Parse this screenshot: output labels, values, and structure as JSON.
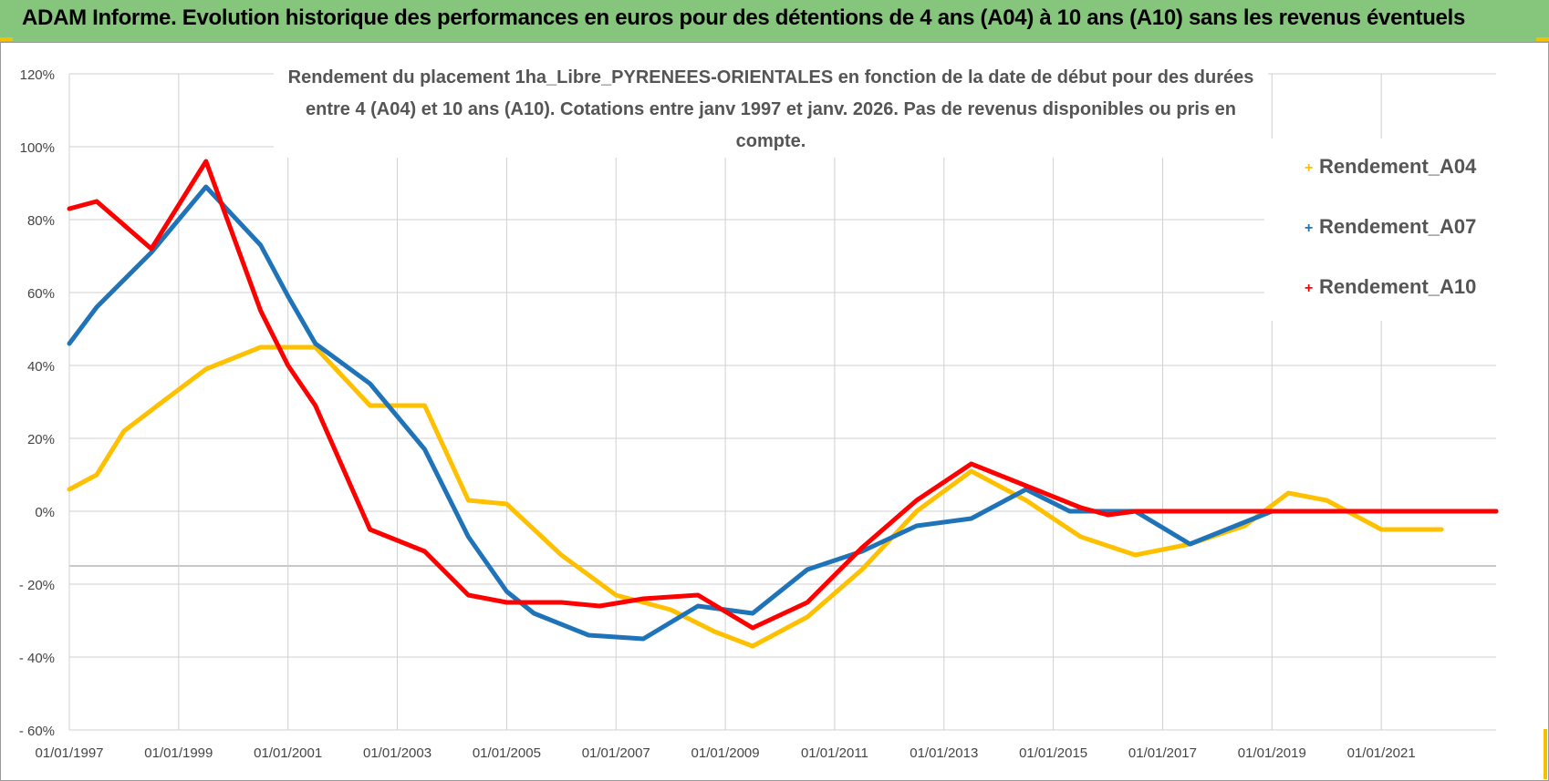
{
  "header": {
    "title": "ADAM Informe. Evolution historique des performances en euros pour des détentions de 4 ans (A04) à 10 ans (A10) sans les revenus éventuels"
  },
  "chart_data": {
    "type": "line",
    "title_lines": [
      "Rendement du placement 1ha_Libre_PYRENEES-ORIENTALES en fonction de la date de début pour des durées",
      "entre 4 (A04) et 10 ans (A10).  Cotations entre janv 1997 et janv. 2026. Pas de revenus disponibles ou pris en compte."
    ],
    "xlabel": "",
    "ylabel": "",
    "x_tick_labels": [
      "01/01/1997",
      "01/01/1999",
      "01/01/2001",
      "01/01/2003",
      "01/01/2005",
      "01/01/2007",
      "01/01/2009",
      "01/01/2011",
      "01/01/2013",
      "01/01/2015",
      "01/01/2017",
      "01/01/2019",
      "01/01/2021"
    ],
    "y_tick_labels": [
      "120%",
      "100%",
      "80%",
      "60%",
      "40%",
      "20%",
      "0%",
      "- 20%",
      "- 40%",
      "- 60%"
    ],
    "xlim": [
      1997,
      2023.1
    ],
    "ylim": [
      -60,
      120
    ],
    "grid": true,
    "legend_position": "top-right",
    "series": [
      {
        "name": "Rendement_A04",
        "color": "#ffc000",
        "points": [
          [
            1997,
            6
          ],
          [
            1997.5,
            10
          ],
          [
            1998,
            22
          ],
          [
            1998.7,
            30
          ],
          [
            1999.5,
            39
          ],
          [
            2000,
            42
          ],
          [
            2000.5,
            45
          ],
          [
            2001.5,
            45
          ],
          [
            2002.5,
            29
          ],
          [
            2003.5,
            29
          ],
          [
            2004.3,
            3
          ],
          [
            2005,
            2
          ],
          [
            2006,
            -12
          ],
          [
            2007,
            -23
          ],
          [
            2008,
            -27
          ],
          [
            2008.8,
            -33
          ],
          [
            2009.5,
            -37
          ],
          [
            2010.5,
            -29
          ],
          [
            2011.5,
            -16
          ],
          [
            2012.5,
            0
          ],
          [
            2013.5,
            11
          ],
          [
            2014.5,
            3
          ],
          [
            2015.5,
            -7
          ],
          [
            2016.5,
            -12
          ],
          [
            2017.5,
            -9
          ],
          [
            2018.5,
            -4
          ],
          [
            2019.3,
            5
          ],
          [
            2020,
            3
          ],
          [
            2021,
            -5
          ],
          [
            2022,
            -5
          ],
          [
            2022.1,
            -5
          ]
        ]
      },
      {
        "name": "Rendement_A07",
        "color": "#1f73b8",
        "points": [
          [
            1997,
            46
          ],
          [
            1997.5,
            56
          ],
          [
            1998.5,
            71
          ],
          [
            1999.5,
            89
          ],
          [
            2000.5,
            73
          ],
          [
            2001,
            59
          ],
          [
            2001.5,
            46
          ],
          [
            2002.5,
            35
          ],
          [
            2003.5,
            17
          ],
          [
            2004.3,
            -7
          ],
          [
            2005,
            -22
          ],
          [
            2005.5,
            -28
          ],
          [
            2006.5,
            -34
          ],
          [
            2007.5,
            -35
          ],
          [
            2008.5,
            -26
          ],
          [
            2009.5,
            -28
          ],
          [
            2010.5,
            -16
          ],
          [
            2011.5,
            -11
          ],
          [
            2012.5,
            -4
          ],
          [
            2013.5,
            -2
          ],
          [
            2014.5,
            6
          ],
          [
            2015.3,
            0
          ],
          [
            2016.5,
            0
          ],
          [
            2017.5,
            -9
          ],
          [
            2018.5,
            -3
          ],
          [
            2019,
            0
          ],
          [
            2023.1,
            0
          ]
        ]
      },
      {
        "name": "Rendement_A10",
        "color": "#ff0000",
        "points": [
          [
            1997,
            83
          ],
          [
            1997.5,
            85
          ],
          [
            1998.5,
            72
          ],
          [
            1999.5,
            96
          ],
          [
            2000.5,
            55
          ],
          [
            2001,
            40
          ],
          [
            2001.5,
            29
          ],
          [
            2002.5,
            -5
          ],
          [
            2003.5,
            -11
          ],
          [
            2004.3,
            -23
          ],
          [
            2005,
            -25
          ],
          [
            2006,
            -25
          ],
          [
            2006.7,
            -26
          ],
          [
            2007.5,
            -24
          ],
          [
            2008.5,
            -23
          ],
          [
            2009.5,
            -32
          ],
          [
            2010.5,
            -25
          ],
          [
            2011.5,
            -10
          ],
          [
            2012.5,
            3
          ],
          [
            2013.5,
            13
          ],
          [
            2014.5,
            7
          ],
          [
            2015.5,
            1
          ],
          [
            2016,
            -1
          ],
          [
            2016.5,
            0
          ],
          [
            2023.1,
            0
          ]
        ]
      }
    ]
  }
}
